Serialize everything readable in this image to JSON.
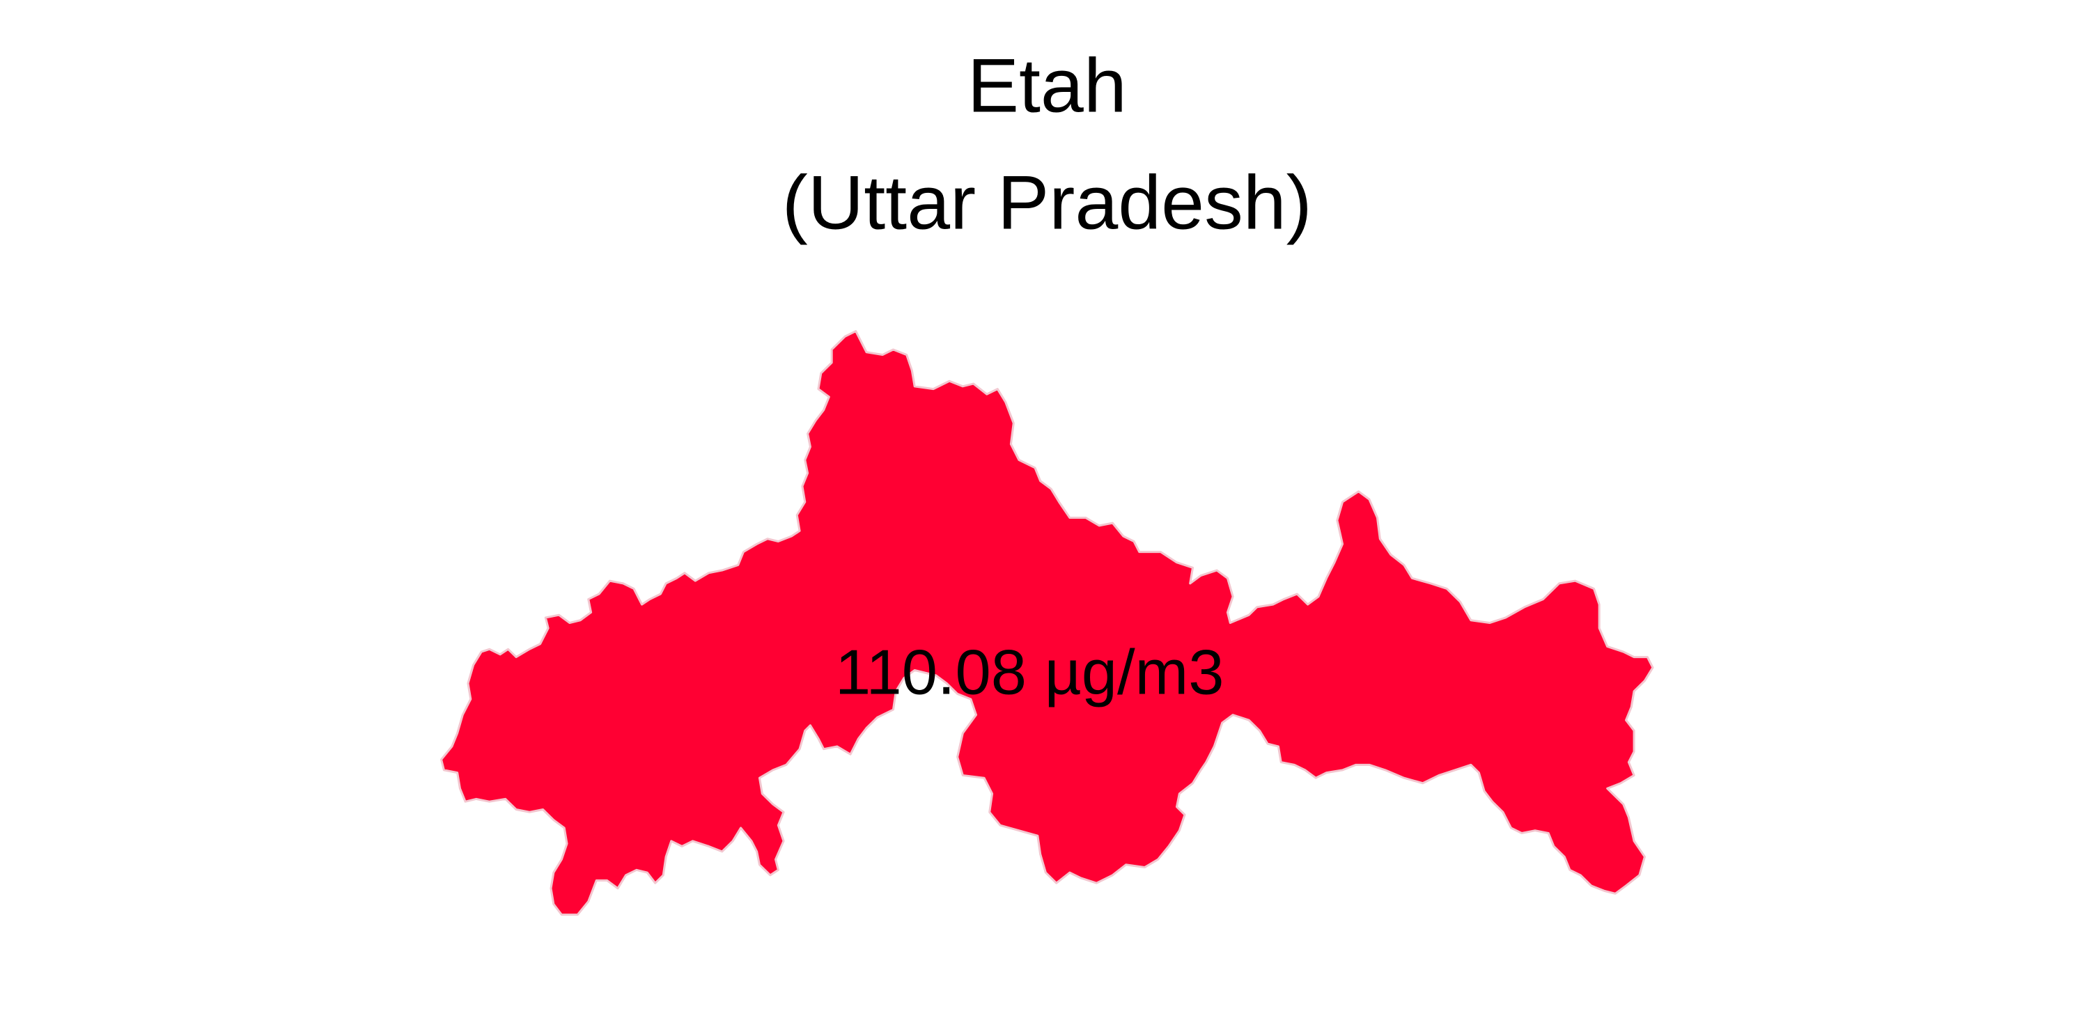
{
  "map": {
    "title": "Etah",
    "subtitle": "(Uttar Pradesh)",
    "district": "Etah",
    "state": "Uttar Pradesh",
    "value_label": "110.08 µg/m3",
    "pollutant_value": 110.08,
    "unit": "µg/m3",
    "fill_color": "#ff0033",
    "border_color": "#f3c6cf"
  }
}
